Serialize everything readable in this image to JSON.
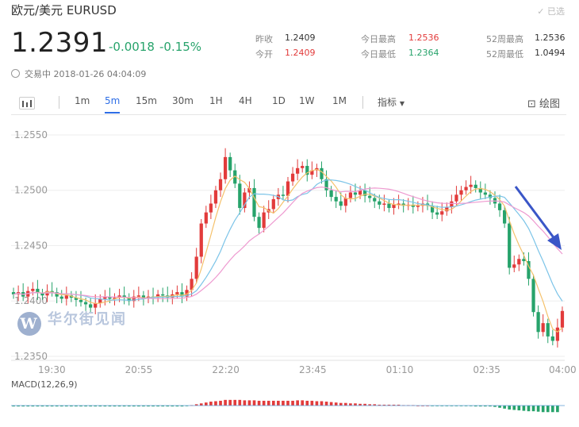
{
  "header": {
    "title": "欧元/美元  EURUSD",
    "selected_label": "已选",
    "price": "1.2391",
    "change": "-0.0018",
    "change_pct": "-0.15%",
    "trading_time": "交易中 2018-01-26 04:04:09"
  },
  "stats": [
    {
      "label": "昨收",
      "value": "1.2409",
      "color": "black"
    },
    {
      "label": "今开",
      "value": "1.2409",
      "color": "red"
    },
    {
      "label": "今日最高",
      "value": "1.2536",
      "color": "red"
    },
    {
      "label": "今日最低",
      "value": "1.2364",
      "color": "green"
    },
    {
      "label": "52周最高",
      "value": "1.2536",
      "color": "black"
    },
    {
      "label": "52周最低",
      "value": "1.0494",
      "color": "black"
    }
  ],
  "toolbar": {
    "intervals": [
      "1m",
      "5m",
      "15m",
      "30m",
      "1H",
      "4H",
      "1D",
      "1W",
      "1M"
    ],
    "active_interval": "5m",
    "indicator_label": "指标",
    "draw_label": "绘图"
  },
  "watermark": "华尔街见闻",
  "macd_label": "MACD(12,26,9)",
  "colors": {
    "up": "#e23b3b",
    "down": "#27a36b",
    "accent": "#2e6ee6",
    "ma_fast": "#f5c16b",
    "ma_mid": "#7cc4e8",
    "ma_slow": "#ee9ad0",
    "arrow": "#3a56c7"
  },
  "chart_data": {
    "type": "candlestick",
    "y_ticks": [
      "1.2550",
      "1.2500",
      "1.2450",
      "1.2400",
      "1.2350"
    ],
    "ylim": [
      1.235,
      1.2555
    ],
    "x_ticks": [
      "19:30",
      "20:55",
      "22:20",
      "23:45",
      "01:10",
      "02:35",
      "04:00"
    ],
    "closes": [
      1.2406,
      1.2408,
      1.2404,
      1.2409,
      1.2411,
      1.2407,
      1.2405,
      1.2409,
      1.2408,
      1.2404,
      1.2402,
      1.2405,
      1.2403,
      1.2401,
      1.2399,
      1.2397,
      1.2394,
      1.2398,
      1.2402,
      1.2404,
      1.2402,
      1.2403,
      1.2405,
      1.2403,
      1.24,
      1.2404,
      1.2405,
      1.2402,
      1.2404,
      1.2403,
      1.2406,
      1.2405,
      1.2403,
      1.2406,
      1.2408,
      1.2404,
      1.241,
      1.242,
      1.244,
      1.247,
      1.248,
      1.2488,
      1.25,
      1.251,
      1.253,
      1.2518,
      1.2506,
      1.2484,
      1.2498,
      1.2502,
      1.2476,
      1.2466,
      1.248,
      1.2483,
      1.2492,
      1.2496,
      1.2495,
      1.2508,
      1.2515,
      1.252,
      1.2522,
      1.2514,
      1.2518,
      1.252,
      1.251,
      1.25,
      1.2494,
      1.249,
      1.2486,
      1.2493,
      1.2498,
      1.2496,
      1.25,
      1.2495,
      1.2493,
      1.249,
      1.2487,
      1.2488,
      1.2484,
      1.2487,
      1.2488,
      1.2486,
      1.2487,
      1.2485,
      1.2486,
      1.2488,
      1.2486,
      1.248,
      1.2478,
      1.2481,
      1.2485,
      1.249,
      1.2496,
      1.25,
      1.2503,
      1.2505,
      1.2502,
      1.2498,
      1.2496,
      1.2493,
      1.2488,
      1.2482,
      1.247,
      1.243,
      1.2433,
      1.2438,
      1.2436,
      1.242,
      1.239,
      1.2372,
      1.238,
      1.2368,
      1.2364,
      1.2376,
      1.2391
    ],
    "macd_hist": [
      -2,
      -2,
      -2,
      -2,
      -2,
      -2,
      -2,
      -2,
      -2,
      -2,
      -2,
      -2,
      -2,
      -2,
      -2,
      -2,
      -2,
      -2,
      -2,
      -2,
      -2,
      -2,
      -2,
      -2,
      -2,
      -2,
      -2,
      -2,
      -2,
      -2,
      -2,
      -2,
      -2,
      -2,
      -2,
      -2,
      -1,
      1,
      3,
      5,
      7,
      9,
      10,
      11,
      13,
      13,
      13,
      13,
      12,
      12,
      12,
      11,
      11,
      11,
      11,
      11,
      11,
      11,
      11,
      12,
      12,
      11,
      11,
      10,
      10,
      9,
      8,
      7,
      6,
      6,
      5,
      5,
      4,
      4,
      3,
      3,
      2,
      2,
      2,
      2,
      2,
      1,
      1,
      1,
      0,
      0,
      0,
      -1,
      -1,
      -1,
      -1,
      -1,
      -1,
      -1,
      -1,
      -1,
      -2,
      -2,
      -2,
      -2,
      -3,
      -5,
      -7,
      -9,
      -10,
      -11,
      -12,
      -13,
      -13,
      -14,
      -15,
      -15,
      -15,
      -15
    ]
  }
}
